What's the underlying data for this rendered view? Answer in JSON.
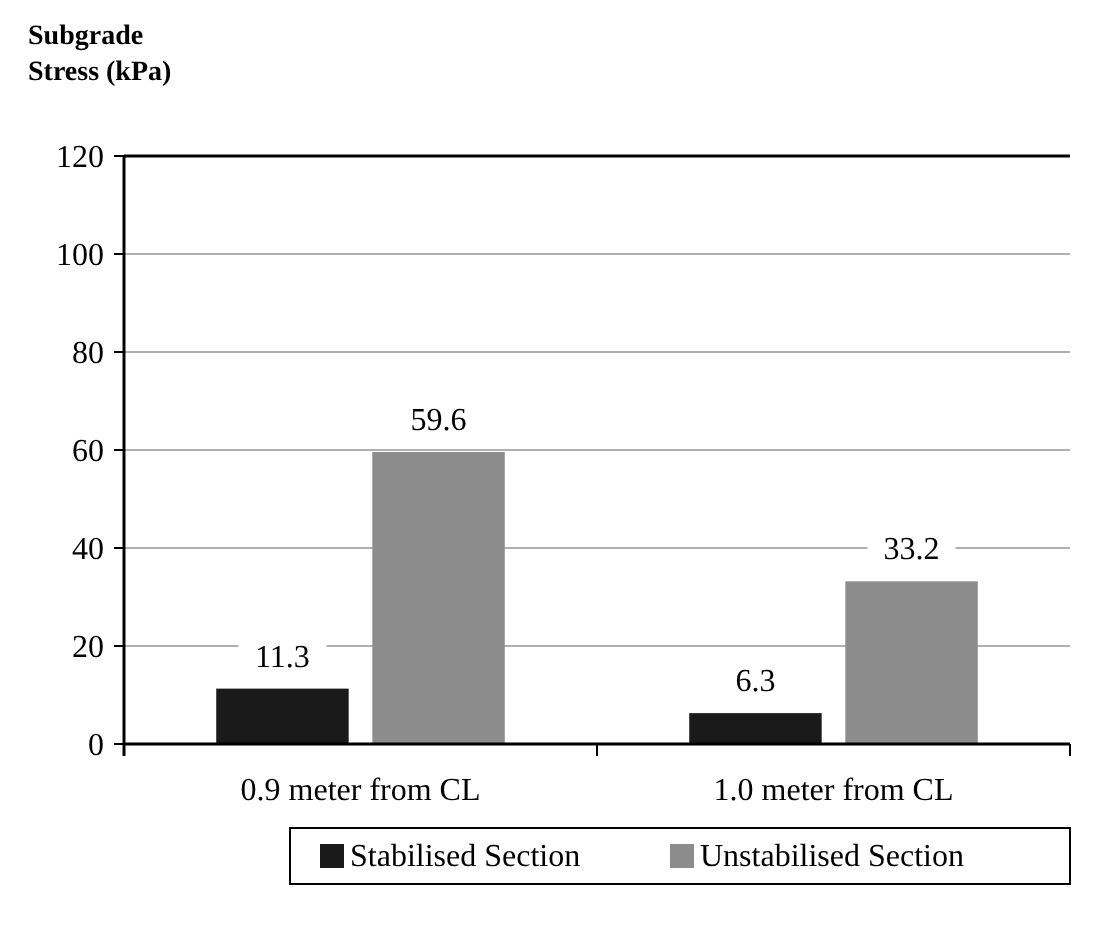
{
  "chart_data": {
    "type": "bar",
    "ylabel": "Subgrade Stress (kPa)",
    "categories": [
      "0.9 meter from CL",
      "1.0 meter from CL"
    ],
    "series": [
      {
        "name": "Stabilised Section",
        "color": "#1a1a1a",
        "values": [
          11.3,
          6.3
        ]
      },
      {
        "name": "Unstabilised Section",
        "color": "#8c8c8c",
        "values": [
          59.6,
          33.2
        ]
      }
    ],
    "ylim": [
      0,
      120
    ],
    "yticks": [
      0,
      20,
      40,
      60,
      80,
      100,
      120
    ],
    "grid": "y",
    "legend": "bottom",
    "data_labels": true
  }
}
